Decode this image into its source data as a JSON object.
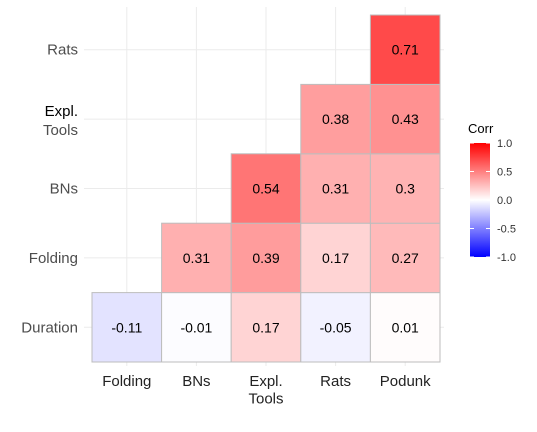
{
  "chart_data": {
    "type": "heatmap",
    "x_categories": [
      "Folding",
      "BNs",
      "Expl. Tools",
      "Rats",
      "Podunk"
    ],
    "y_categories": [
      "Duration",
      "Folding",
      "BNs",
      "Expl. Tools",
      "Rats"
    ],
    "cells": [
      {
        "x": "Folding",
        "y": "Duration",
        "value": -0.11,
        "label": "-0.11"
      },
      {
        "x": "BNs",
        "y": "Duration",
        "value": -0.01,
        "label": "-0.01"
      },
      {
        "x": "Expl. Tools",
        "y": "Duration",
        "value": 0.17,
        "label": "0.17"
      },
      {
        "x": "Rats",
        "y": "Duration",
        "value": -0.05,
        "label": "-0.05"
      },
      {
        "x": "Podunk",
        "y": "Duration",
        "value": 0.01,
        "label": "0.01"
      },
      {
        "x": "BNs",
        "y": "Folding",
        "value": 0.31,
        "label": "0.31"
      },
      {
        "x": "Expl. Tools",
        "y": "Folding",
        "value": 0.39,
        "label": "0.39"
      },
      {
        "x": "Rats",
        "y": "Folding",
        "value": 0.17,
        "label": "0.17"
      },
      {
        "x": "Podunk",
        "y": "Folding",
        "value": 0.27,
        "label": "0.27"
      },
      {
        "x": "Expl. Tools",
        "y": "BNs",
        "value": 0.54,
        "label": "0.54"
      },
      {
        "x": "Rats",
        "y": "BNs",
        "value": 0.31,
        "label": "0.31"
      },
      {
        "x": "Podunk",
        "y": "BNs",
        "value": 0.3,
        "label": "0.3"
      },
      {
        "x": "Rats",
        "y": "Expl. Tools",
        "value": 0.38,
        "label": "0.38"
      },
      {
        "x": "Podunk",
        "y": "Expl. Tools",
        "value": 0.43,
        "label": "0.43"
      },
      {
        "x": "Podunk",
        "y": "Rats",
        "value": 0.71,
        "label": "0.71"
      }
    ],
    "legend": {
      "title": "Corr",
      "ticks": [
        "1.0",
        "0.5",
        "0.0",
        "-0.5",
        "-1.0"
      ],
      "range": [
        -1,
        1
      ],
      "colors": {
        "low": "#0000ff",
        "mid": "#ffffff",
        "high": "#ff0000"
      }
    },
    "grid": true
  }
}
